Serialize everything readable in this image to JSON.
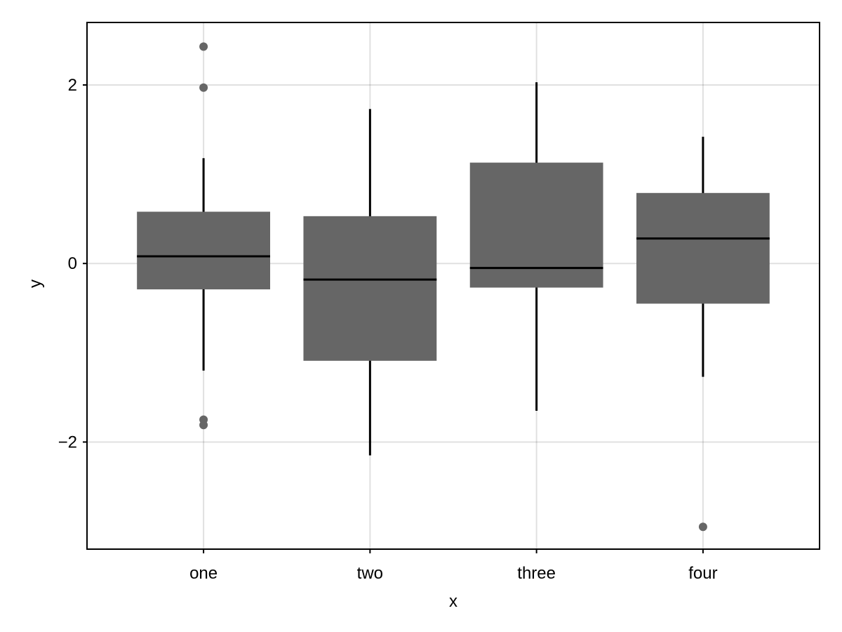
{
  "chart_data": {
    "type": "boxplot",
    "categories": [
      "one",
      "two",
      "three",
      "four"
    ],
    "xlabel": "x",
    "ylabel": "y",
    "ylim": [
      -3.2,
      2.7
    ],
    "yticks": [
      {
        "value": -2,
        "label": "−2"
      },
      {
        "value": 0,
        "label": "0"
      },
      {
        "value": 2,
        "label": "2"
      }
    ],
    "grid": true,
    "box_color": "#666666",
    "line_color": "#000000",
    "boxes": [
      {
        "category": "one",
        "whisker_low": -1.2,
        "q1": -0.29,
        "median": 0.08,
        "q3": 0.58,
        "whisker_high": 1.18,
        "outliers": [
          2.43,
          1.97,
          -1.75,
          -1.81
        ]
      },
      {
        "category": "two",
        "whisker_low": -2.15,
        "q1": -1.09,
        "median": -0.18,
        "q3": 0.53,
        "whisker_high": 1.73,
        "outliers": []
      },
      {
        "category": "three",
        "whisker_low": -1.65,
        "q1": -0.27,
        "median": -0.05,
        "q3": 1.13,
        "whisker_high": 2.03,
        "outliers": []
      },
      {
        "category": "four",
        "whisker_low": -1.27,
        "q1": -0.45,
        "median": 0.28,
        "q3": 0.79,
        "whisker_high": 1.42,
        "outliers": [
          -2.95
        ]
      }
    ]
  }
}
